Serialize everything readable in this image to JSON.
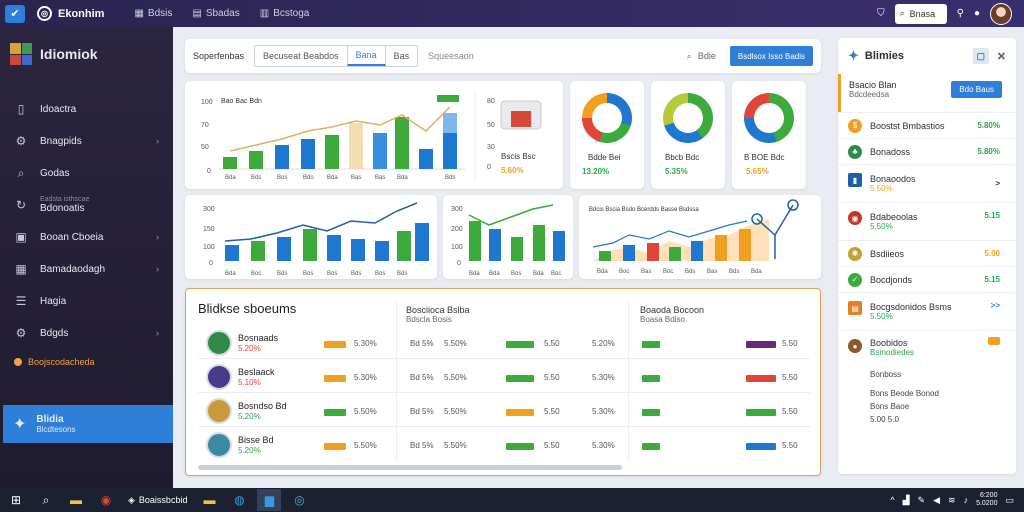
{
  "topbar": {
    "brand": "Ekonhim",
    "menu": [
      "Bdsis",
      "Sbadas",
      "Bcstoga"
    ],
    "search_label": "Bnasa"
  },
  "sidebar": {
    "title": "Idiomiok",
    "items": [
      {
        "label": "Idoactra",
        "icon": "document-icon"
      },
      {
        "label": "Bnagpids",
        "icon": "gear-icon",
        "chevron": true
      },
      {
        "label": "Godas",
        "icon": "search-icon"
      },
      {
        "label": "Bdonoatis",
        "sub": "Eadsta isthscae",
        "icon": "refresh-icon"
      },
      {
        "label": "Booan Cboeia",
        "icon": "chart-icon",
        "chevron": true
      },
      {
        "label": "Bamadaodagh",
        "icon": "calendar-icon",
        "chevron": true
      },
      {
        "label": "Hagia",
        "icon": "list-icon"
      },
      {
        "label": "Bdgds",
        "icon": "settings-icon",
        "chevron": true
      }
    ],
    "highlight": "Boojscodacheda",
    "active": {
      "title": "Blidia",
      "sub": "Blcdtesons"
    }
  },
  "filterbar": {
    "label": "Soperfenbas",
    "tabs": [
      "Becuseat Beabdos",
      "Bana",
      "Bas"
    ],
    "extra": "Squeesaon",
    "search_label": "Bdie",
    "primary_button": "Bsdlsox Isso Badis"
  },
  "kpi": {
    "chart1": {
      "title": "Bao Bac Bdn",
      "ylabels": [
        "100",
        "70",
        "50",
        "0"
      ],
      "xlabels": [
        "Bda",
        "Bds",
        "Bos",
        "Bdo",
        "Bda",
        "Bas",
        "Bas",
        "Bda",
        "Bds"
      ]
    },
    "summary": {
      "axis": [
        "80",
        "50",
        "30",
        "0"
      ],
      "label": "Bscis Bsc",
      "value": "5.60%"
    },
    "donuts": [
      {
        "label": "Bdde Bei",
        "value": "13.20%"
      },
      {
        "label": "Bbcb Bdc",
        "value": "5.35%"
      },
      {
        "label": "B BOE Bdc",
        "value": "5.65%"
      }
    ]
  },
  "charts": {
    "chart2": {
      "ylabels": [
        "300",
        "150",
        "100",
        "0"
      ],
      "xlabels": [
        "Bda",
        "Boc",
        "Bds",
        "Bos",
        "Bos",
        "Bds",
        "Bos",
        "Bds",
        "Bda",
        "Bos"
      ]
    },
    "chart3": {
      "ylabels": [
        "300",
        "200",
        "100",
        "0"
      ],
      "xlabels": [
        "Bda",
        "Bda",
        "Bos",
        "Bda",
        "Boc",
        "Bda"
      ]
    },
    "chart4": {
      "title": "Bdcis Bscia Bsdo Bcerdds Basse Bsdssa",
      "xlabels": [
        "Bda",
        "Boc",
        "Bas",
        "Boc",
        "Bds",
        "Bas",
        "Bds",
        "Bda",
        "Bda",
        "Bas"
      ]
    }
  },
  "table": {
    "title": "Blidkse sboeums",
    "col2": {
      "title": "Bosciioca Bslba",
      "sub": "Bdscla Bosis"
    },
    "col3": {
      "title": "Boaoda Bocoon",
      "sub": "Boasa Bdiso"
    },
    "rows": [
      {
        "name": "Bosnaads",
        "sub": "5.20%",
        "c1": "5.30%",
        "a": "Bd 5%",
        "b": "5.50%",
        "c": "5.50",
        "d": "5.20%",
        "e": "5.50"
      },
      {
        "name": "Beslaack",
        "sub": "5.10%",
        "c1": "5.30%",
        "a": "Bd 5%",
        "b": "5.50%",
        "c": "5.50",
        "d": "5.30%",
        "e": "5.50"
      },
      {
        "name": "Bosndso Bd",
        "sub": "5.20%",
        "c1": "5.50%",
        "a": "Bd 5%",
        "b": "5.50%",
        "c": "5.50",
        "d": "5.30%",
        "e": "5.50"
      },
      {
        "name": "Bisse Bd",
        "sub": "5.20%",
        "c1": "5.50%",
        "a": "Bd 5%",
        "b": "5.50%",
        "c": "5.50",
        "d": "5.30%",
        "e": "5.50"
      }
    ]
  },
  "rpanel": {
    "title": "Blimies",
    "top": {
      "title": "Bsacio Blan",
      "sub": "Bdcdeedsa",
      "button": "Bdo Baus"
    },
    "items": [
      {
        "label": "Boostst Bmbastios",
        "val": "5.80%"
      },
      {
        "label": "Bonadoss",
        "val": "5.80%"
      },
      {
        "label": "Bonaoodos",
        "sub": "5.50%",
        "val": ">"
      },
      {
        "label": "Bdabeoolas",
        "sub": "5.50%",
        "val": "5.15"
      },
      {
        "label": "Bsdiieos",
        "val": "5.00"
      },
      {
        "label": "Bocdjonds",
        "val": "5.15"
      },
      {
        "label": "Bocgsdonidos Bsms",
        "sub": "5.50%",
        "val": ">>"
      },
      {
        "label": "Boobidos",
        "sub": "Bsmodiedes",
        "val": ""
      }
    ],
    "footer": [
      "Bonboss",
      "Bons Beode Bonod",
      "Bons Baoe",
      "5.00 5.0"
    ]
  },
  "taskbar": {
    "app_label": "Boaissbcbid",
    "time": "6:200",
    "date": "5.0200"
  }
}
